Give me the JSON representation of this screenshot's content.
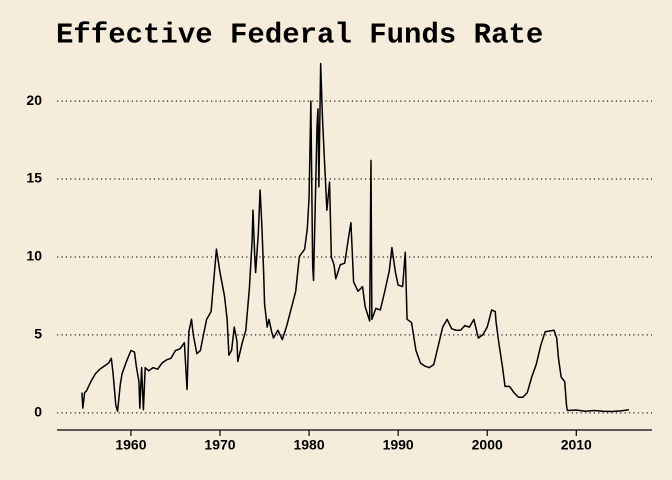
{
  "chart_data": {
    "type": "line",
    "title": "Effective Federal Funds Rate",
    "x": [
      1954.5,
      1954.6,
      1954.8,
      1955,
      1955.5,
      1956,
      1956.5,
      1957,
      1957.5,
      1957.8,
      1958,
      1958.3,
      1958.5,
      1958.8,
      1959,
      1959.5,
      1960,
      1960.4,
      1960.6,
      1960.9,
      1961,
      1961.2,
      1961.4,
      1961.6,
      1962,
      1962.5,
      1963,
      1963.5,
      1964,
      1964.5,
      1965,
      1965.5,
      1966,
      1966.3,
      1966.5,
      1966.8,
      1967,
      1967.4,
      1967.8,
      1968,
      1968.5,
      1969,
      1969.3,
      1969.6,
      1970,
      1970.5,
      1970.8,
      1971,
      1971.3,
      1971.6,
      1971.9,
      1972,
      1972.5,
      1972.9,
      1973,
      1973.3,
      1973.6,
      1973.7,
      1973.9,
      1974,
      1974.3,
      1974.5,
      1974.7,
      1974.9,
      1975,
      1975.3,
      1975.5,
      1975.8,
      1976,
      1976.5,
      1977,
      1977.5,
      1978,
      1978.5,
      1978.9,
      1979,
      1979.5,
      1979.8,
      1980,
      1980.2,
      1980.4,
      1980.5,
      1980.9,
      1981,
      1981.1,
      1981.3,
      1981.5,
      1981.7,
      1982,
      1982.3,
      1982.5,
      1982.8,
      1983,
      1983.5,
      1984,
      1984.5,
      1984.7,
      1985,
      1985.5,
      1986,
      1986.3,
      1986.8,
      1986.95,
      1987.05,
      1987.5,
      1988,
      1988.5,
      1989,
      1989.3,
      1989.7,
      1990,
      1990.5,
      1990.8,
      1991,
      1991.5,
      1992,
      1992.5,
      1993,
      1993.5,
      1994,
      1994.5,
      1995,
      1995.5,
      1996,
      1996.5,
      1997,
      1997.5,
      1998,
      1998.5,
      1999,
      1999.5,
      2000,
      2000.5,
      2000.9,
      2001,
      2001.3,
      2001.7,
      2002,
      2002.5,
      2003,
      2003.5,
      2004,
      2004.5,
      2005,
      2005.5,
      2006,
      2006.5,
      2007,
      2007.5,
      2007.8,
      2008,
      2008.3,
      2008.7,
      2008.9,
      2009,
      2010,
      2011,
      2012,
      2013,
      2014,
      2015,
      2015.9
    ],
    "values": [
      1.3,
      0.3,
      1.3,
      1.4,
      2.0,
      2.5,
      2.8,
      3.0,
      3.2,
      3.5,
      2.5,
      0.5,
      0.1,
      1.8,
      2.5,
      3.3,
      4.0,
      3.9,
      3.0,
      2.0,
      0.3,
      2.9,
      0.2,
      2.9,
      2.7,
      2.9,
      2.8,
      3.2,
      3.4,
      3.5,
      4.0,
      4.1,
      4.5,
      1.5,
      5.2,
      6.0,
      5.0,
      3.8,
      4.0,
      4.6,
      6.0,
      6.5,
      8.5,
      10.5,
      9.0,
      7.5,
      6.0,
      3.7,
      4.0,
      5.5,
      4.6,
      3.3,
      4.5,
      5.3,
      6.0,
      8.0,
      11.0,
      13.0,
      10.0,
      9.0,
      11.5,
      14.3,
      12.0,
      9.0,
      7.0,
      5.5,
      6.0,
      5.2,
      4.8,
      5.3,
      4.7,
      5.6,
      6.7,
      7.8,
      10.0,
      10.1,
      10.5,
      11.8,
      13.8,
      20.0,
      9.5,
      8.5,
      18.5,
      19.5,
      14.5,
      22.4,
      19.0,
      16.5,
      13.0,
      14.8,
      10.0,
      9.5,
      8.6,
      9.5,
      9.6,
      11.5,
      12.2,
      8.4,
      7.8,
      8.1,
      6.8,
      5.9,
      16.2,
      6.0,
      6.7,
      6.6,
      7.8,
      9.1,
      10.6,
      9.0,
      8.2,
      8.1,
      10.3,
      6.0,
      5.8,
      4.0,
      3.2,
      3.0,
      2.9,
      3.1,
      4.3,
      5.5,
      6.0,
      5.4,
      5.3,
      5.3,
      5.6,
      5.5,
      6.0,
      4.8,
      5.0,
      5.5,
      6.6,
      6.5,
      5.8,
      4.5,
      3.0,
      1.7,
      1.7,
      1.3,
      1.0,
      1.0,
      1.3,
      2.3,
      3.1,
      4.3,
      5.2,
      5.25,
      5.3,
      4.8,
      3.5,
      2.3,
      2.0,
      0.5,
      0.15,
      0.18,
      0.1,
      0.15,
      0.1,
      0.09,
      0.13,
      0.2
    ],
    "color": "#000000",
    "xlim": [
      1951.7,
      2018.5
    ],
    "xticks": [
      1960,
      1970,
      1980,
      1990,
      2000,
      2010
    ],
    "ylim": [
      -1.1,
      22.7
    ],
    "yticks": [
      0,
      5,
      10,
      15,
      20
    ],
    "grid": true
  }
}
